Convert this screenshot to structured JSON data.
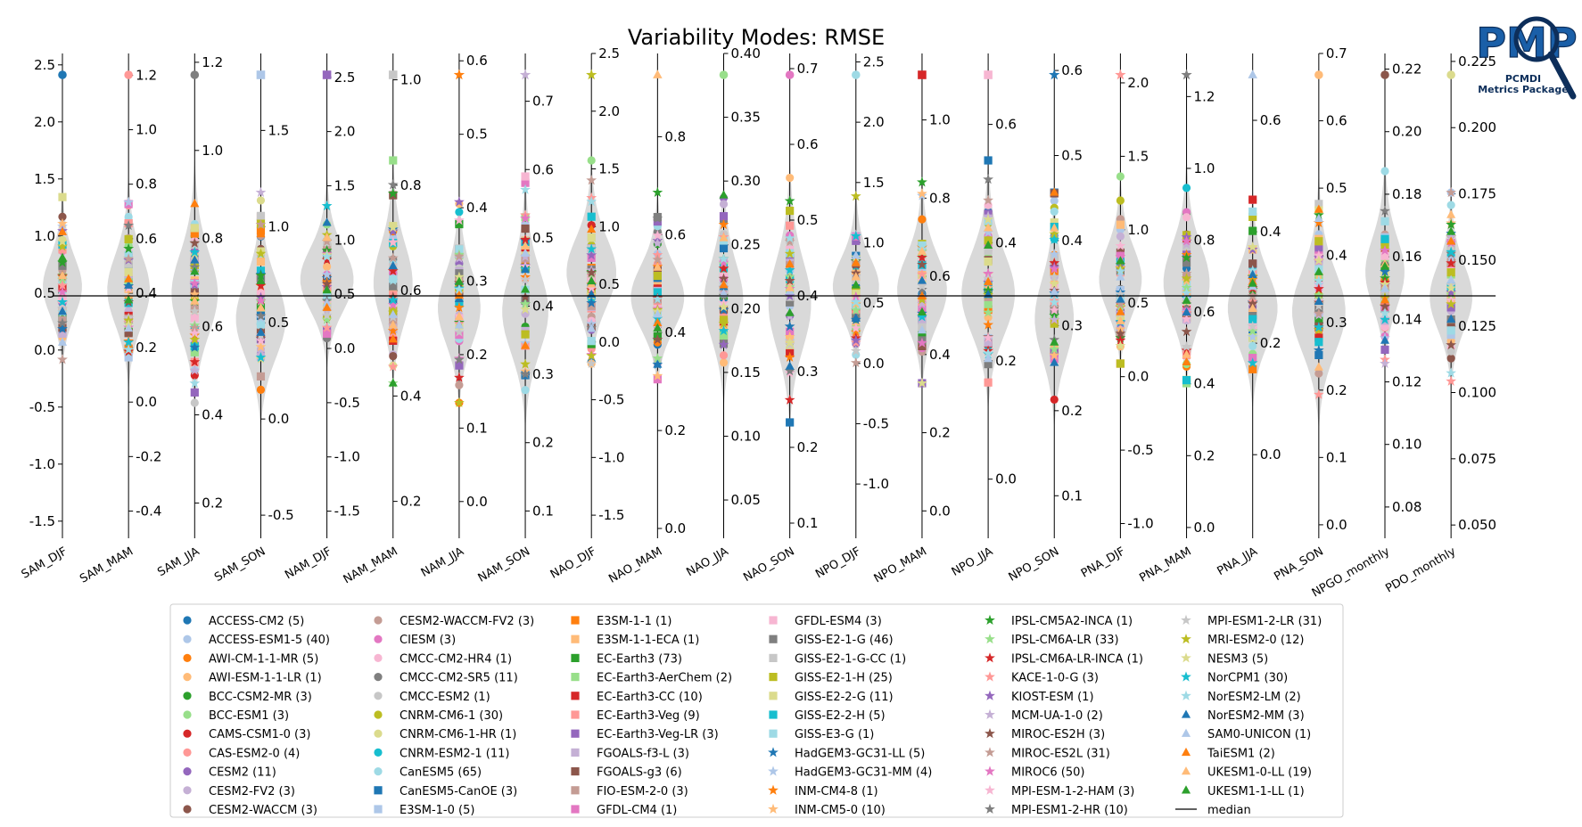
{
  "chart_data": {
    "type": "violin",
    "title": "Variability Modes: RMSE",
    "median_label": "median",
    "categories": [
      "SAM_DJF",
      "SAM_MAM",
      "SAM_JJA",
      "SAM_SON",
      "NAM_DJF",
      "NAM_MAM",
      "NAM_JJA",
      "NAM_SON",
      "NAO_DJF",
      "NAO_MAM",
      "NAO_JJA",
      "NAO_SON",
      "NPO_DJF",
      "NPO_MAM",
      "NPO_JJA",
      "NPO_SON",
      "PNA_DJF",
      "PNA_MAM",
      "PNA_JJA",
      "PNA_SON",
      "NPGO_monthly",
      "PDO_monthly"
    ],
    "axes": [
      {
        "ticks": [
          "-1.5",
          "-1.0",
          "-0.5",
          "0.0",
          "0.5",
          "1.0",
          "1.5",
          "2.0",
          "2.5"
        ],
        "ylim": [
          -1.65,
          2.6
        ],
        "median": 0.5,
        "side": "left"
      },
      {
        "ticks": [
          "-0.4",
          "-0.2",
          "0.0",
          "0.2",
          "0.4",
          "0.6",
          "0.8",
          "1.0",
          "1.2"
        ],
        "ylim": [
          -0.5,
          1.28
        ],
        "median": 0.4,
        "side": "right"
      },
      {
        "ticks": [
          "0.2",
          "0.4",
          "0.6",
          "0.8",
          "1.0",
          "1.2"
        ],
        "ylim": [
          0.12,
          1.22
        ],
        "median": 0.6,
        "side": "right"
      },
      {
        "ticks": [
          "-0.5",
          "0.0",
          "0.5",
          "1.0",
          "1.5"
        ],
        "ylim": [
          -0.62,
          1.9
        ],
        "median": 0.5,
        "side": "right"
      },
      {
        "ticks": [
          "-1.5",
          "-1.0",
          "-0.5",
          "0.0",
          "0.5",
          "1.0",
          "1.5",
          "2.0",
          "2.5"
        ],
        "ylim": [
          -1.75,
          2.72
        ],
        "median": 0.5,
        "side": "right"
      },
      {
        "ticks": [
          "0.2",
          "0.4",
          "0.6",
          "0.8",
          "1.0"
        ],
        "ylim": [
          0.13,
          1.05
        ],
        "median": 0.6,
        "side": "right"
      },
      {
        "ticks": [
          "0.0",
          "0.1",
          "0.2",
          "0.3",
          "0.4",
          "0.5",
          "0.6"
        ],
        "ylim": [
          -0.05,
          0.61
        ],
        "median": 0.27,
        "side": "right"
      },
      {
        "ticks": [
          "0.1",
          "0.2",
          "0.3",
          "0.4",
          "0.5",
          "0.6",
          "0.7"
        ],
        "ylim": [
          0.06,
          0.77
        ],
        "median": 0.4,
        "side": "right"
      },
      {
        "ticks": [
          "-1.5",
          "-1.0",
          "-0.5",
          "0.0",
          "0.5",
          "1.0",
          "1.5",
          "2.0",
          "2.5"
        ],
        "ylim": [
          -1.7,
          2.5
        ],
        "median": 0.5,
        "side": "right"
      },
      {
        "ticks": [
          "0.0",
          "0.2",
          "0.4",
          "0.6",
          "0.8"
        ],
        "ylim": [
          -0.02,
          0.97
        ],
        "median": 0.46,
        "side": "right"
      },
      {
        "ticks": [
          "0.05",
          "0.10",
          "0.15",
          "0.20",
          "0.25",
          "0.30",
          "0.35",
          "0.40"
        ],
        "ylim": [
          0.02,
          0.4
        ],
        "median": 0.21,
        "side": "right"
      },
      {
        "ticks": [
          "0.1",
          "0.2",
          "0.3",
          "0.4",
          "0.5",
          "0.6",
          "0.7"
        ],
        "ylim": [
          0.08,
          0.72
        ],
        "median": 0.4,
        "side": "right"
      },
      {
        "ticks": [
          "-1.0",
          "-0.5",
          "0.0",
          "0.5",
          "1.0",
          "1.5",
          "2.0",
          "2.5"
        ],
        "ylim": [
          -1.45,
          2.57
        ],
        "median": 0.5,
        "side": "right"
      },
      {
        "ticks": [
          "0.0",
          "0.2",
          "0.4",
          "0.6",
          "0.8",
          "1.0"
        ],
        "ylim": [
          -0.07,
          1.17
        ],
        "median": 0.6,
        "side": "right"
      },
      {
        "ticks": [
          "0.0",
          "0.2",
          "0.4",
          "0.6"
        ],
        "ylim": [
          -0.1,
          0.72
        ],
        "median": 0.31,
        "side": "right"
      },
      {
        "ticks": [
          "0.1",
          "0.2",
          "0.3",
          "0.4",
          "0.5",
          "0.6"
        ],
        "ylim": [
          0.05,
          0.62
        ],
        "median": 0.37,
        "side": "right"
      },
      {
        "ticks": [
          "-1.0",
          "-0.5",
          "0.0",
          "0.5",
          "1.0",
          "1.5",
          "2.0"
        ],
        "ylim": [
          -1.1,
          2.2
        ],
        "median": 0.6,
        "side": "right"
      },
      {
        "ticks": [
          "0.0",
          "0.2",
          "0.4",
          "0.6",
          "0.8",
          "1.0",
          "1.2"
        ],
        "ylim": [
          -0.03,
          1.32
        ],
        "median": 0.72,
        "side": "right"
      },
      {
        "ticks": [
          "0.0",
          "0.2",
          "0.4",
          "0.6"
        ],
        "ylim": [
          -0.15,
          0.72
        ],
        "median": 0.32,
        "side": "right"
      },
      {
        "ticks": [
          "0.0",
          "0.1",
          "0.2",
          "0.3",
          "0.4",
          "0.5",
          "0.6",
          "0.7"
        ],
        "ylim": [
          -0.02,
          0.7
        ],
        "median": 0.35,
        "side": "right"
      },
      {
        "ticks": [
          "0.08",
          "0.10",
          "0.12",
          "0.14",
          "0.16",
          "0.18",
          "0.20",
          "0.22"
        ],
        "ylim": [
          0.07,
          0.225
        ],
        "median": 0.137,
        "side": "right"
      },
      {
        "ticks": [
          "0.050",
          "0.075",
          "0.100",
          "0.125",
          "0.150",
          "0.175",
          "0.200",
          "0.225"
        ],
        "ylim": [
          0.045,
          0.228
        ],
        "median": 0.135,
        "side": "right"
      }
    ],
    "models": [
      {
        "name": "ACCESS-CM2 (5)",
        "color": "#1f77b4",
        "marker": "o"
      },
      {
        "name": "ACCESS-ESM1-5 (40)",
        "color": "#aec7e8",
        "marker": "o"
      },
      {
        "name": "AWI-CM-1-1-MR (5)",
        "color": "#ff7f0e",
        "marker": "o"
      },
      {
        "name": "AWI-ESM-1-1-LR (1)",
        "color": "#ffbb78",
        "marker": "o"
      },
      {
        "name": "BCC-CSM2-MR (3)",
        "color": "#2ca02c",
        "marker": "o"
      },
      {
        "name": "BCC-ESM1 (3)",
        "color": "#98df8a",
        "marker": "o"
      },
      {
        "name": "CAMS-CSM1-0 (3)",
        "color": "#d62728",
        "marker": "o"
      },
      {
        "name": "CAS-ESM2-0 (4)",
        "color": "#ff9896",
        "marker": "o"
      },
      {
        "name": "CESM2 (11)",
        "color": "#9467bd",
        "marker": "o"
      },
      {
        "name": "CESM2-FV2 (3)",
        "color": "#c5b0d5",
        "marker": "o"
      },
      {
        "name": "CESM2-WACCM (3)",
        "color": "#8c564b",
        "marker": "o"
      },
      {
        "name": "CESM2-WACCM-FV2 (3)",
        "color": "#c49c94",
        "marker": "o"
      },
      {
        "name": "CIESM (3)",
        "color": "#e377c2",
        "marker": "o"
      },
      {
        "name": "CMCC-CM2-HR4 (1)",
        "color": "#f7b6d2",
        "marker": "o"
      },
      {
        "name": "CMCC-CM2-SR5 (11)",
        "color": "#7f7f7f",
        "marker": "o"
      },
      {
        "name": "CMCC-ESM2 (1)",
        "color": "#c7c7c7",
        "marker": "o"
      },
      {
        "name": "CNRM-CM6-1 (30)",
        "color": "#bcbd22",
        "marker": "o"
      },
      {
        "name": "CNRM-CM6-1-HR (1)",
        "color": "#dbdb8d",
        "marker": "o"
      },
      {
        "name": "CNRM-ESM2-1 (11)",
        "color": "#17becf",
        "marker": "o"
      },
      {
        "name": "CanESM5 (65)",
        "color": "#9edae5",
        "marker": "o"
      },
      {
        "name": "CanESM5-CanOE (3)",
        "color": "#1f77b4",
        "marker": "s"
      },
      {
        "name": "E3SM-1-0 (5)",
        "color": "#aec7e8",
        "marker": "s"
      },
      {
        "name": "E3SM-1-1 (1)",
        "color": "#ff7f0e",
        "marker": "s"
      },
      {
        "name": "E3SM-1-1-ECA (1)",
        "color": "#ffbb78",
        "marker": "s"
      },
      {
        "name": "EC-Earth3 (73)",
        "color": "#2ca02c",
        "marker": "s"
      },
      {
        "name": "EC-Earth3-AerChem (2)",
        "color": "#98df8a",
        "marker": "s"
      },
      {
        "name": "EC-Earth3-CC (10)",
        "color": "#d62728",
        "marker": "s"
      },
      {
        "name": "EC-Earth3-Veg (9)",
        "color": "#ff9896",
        "marker": "s"
      },
      {
        "name": "EC-Earth3-Veg-LR (3)",
        "color": "#9467bd",
        "marker": "s"
      },
      {
        "name": "FGOALS-f3-L (3)",
        "color": "#c5b0d5",
        "marker": "s"
      },
      {
        "name": "FGOALS-g3 (6)",
        "color": "#8c564b",
        "marker": "s"
      },
      {
        "name": "FIO-ESM-2-0 (3)",
        "color": "#c49c94",
        "marker": "s"
      },
      {
        "name": "GFDL-CM4 (1)",
        "color": "#e377c2",
        "marker": "s"
      },
      {
        "name": "GFDL-ESM4 (3)",
        "color": "#f7b6d2",
        "marker": "s"
      },
      {
        "name": "GISS-E2-1-G (46)",
        "color": "#7f7f7f",
        "marker": "s"
      },
      {
        "name": "GISS-E2-1-G-CC (1)",
        "color": "#c7c7c7",
        "marker": "s"
      },
      {
        "name": "GISS-E2-1-H (25)",
        "color": "#bcbd22",
        "marker": "s"
      },
      {
        "name": "GISS-E2-2-G (11)",
        "color": "#dbdb8d",
        "marker": "s"
      },
      {
        "name": "GISS-E2-2-H (5)",
        "color": "#17becf",
        "marker": "s"
      },
      {
        "name": "GISS-E3-G (1)",
        "color": "#9edae5",
        "marker": "s"
      },
      {
        "name": "HadGEM3-GC31-LL (5)",
        "color": "#1f77b4",
        "marker": "*"
      },
      {
        "name": "HadGEM3-GC31-MM (4)",
        "color": "#aec7e8",
        "marker": "*"
      },
      {
        "name": "INM-CM4-8 (1)",
        "color": "#ff7f0e",
        "marker": "*"
      },
      {
        "name": "INM-CM5-0 (10)",
        "color": "#ffbb78",
        "marker": "*"
      },
      {
        "name": "IPSL-CM5A2-INCA (1)",
        "color": "#2ca02c",
        "marker": "*"
      },
      {
        "name": "IPSL-CM6A-LR (33)",
        "color": "#98df8a",
        "marker": "*"
      },
      {
        "name": "IPSL-CM6A-LR-INCA (1)",
        "color": "#d62728",
        "marker": "*"
      },
      {
        "name": "KACE-1-0-G (3)",
        "color": "#ff9896",
        "marker": "*"
      },
      {
        "name": "KIOST-ESM (1)",
        "color": "#9467bd",
        "marker": "*"
      },
      {
        "name": "MCM-UA-1-0 (2)",
        "color": "#c5b0d5",
        "marker": "*"
      },
      {
        "name": "MIROC-ES2H (3)",
        "color": "#8c564b",
        "marker": "*"
      },
      {
        "name": "MIROC-ES2L (31)",
        "color": "#c49c94",
        "marker": "*"
      },
      {
        "name": "MIROC6 (50)",
        "color": "#e377c2",
        "marker": "*"
      },
      {
        "name": "MPI-ESM-1-2-HAM (3)",
        "color": "#f7b6d2",
        "marker": "*"
      },
      {
        "name": "MPI-ESM1-2-HR (10)",
        "color": "#7f7f7f",
        "marker": "*"
      },
      {
        "name": "MPI-ESM1-2-LR (31)",
        "color": "#c7c7c7",
        "marker": "*"
      },
      {
        "name": "MRI-ESM2-0 (12)",
        "color": "#bcbd22",
        "marker": "*"
      },
      {
        "name": "NESM3 (5)",
        "color": "#dbdb8d",
        "marker": "*"
      },
      {
        "name": "NorCPM1 (30)",
        "color": "#17becf",
        "marker": "*"
      },
      {
        "name": "NorESM2-LM (2)",
        "color": "#9edae5",
        "marker": "*"
      },
      {
        "name": "NorESM2-MM (3)",
        "color": "#1f77b4",
        "marker": "^"
      },
      {
        "name": "SAM0-UNICON (1)",
        "color": "#aec7e8",
        "marker": "^"
      },
      {
        "name": "TaiESM1 (2)",
        "color": "#ff7f0e",
        "marker": "^"
      },
      {
        "name": "UKESM1-0-LL (19)",
        "color": "#ffbb78",
        "marker": "^"
      },
      {
        "name": "UKESM1-1-LL (1)",
        "color": "#2ca02c",
        "marker": "^"
      }
    ],
    "median_line_value": 0.5,
    "violin_color": "#d9d9d9"
  },
  "logo": {
    "text": "PMP",
    "subtitle_line1": "PCMDI",
    "subtitle_line2": "Metrics Package",
    "colors": {
      "primary": "#1a5fa8",
      "dark": "#0d2e5a"
    }
  }
}
